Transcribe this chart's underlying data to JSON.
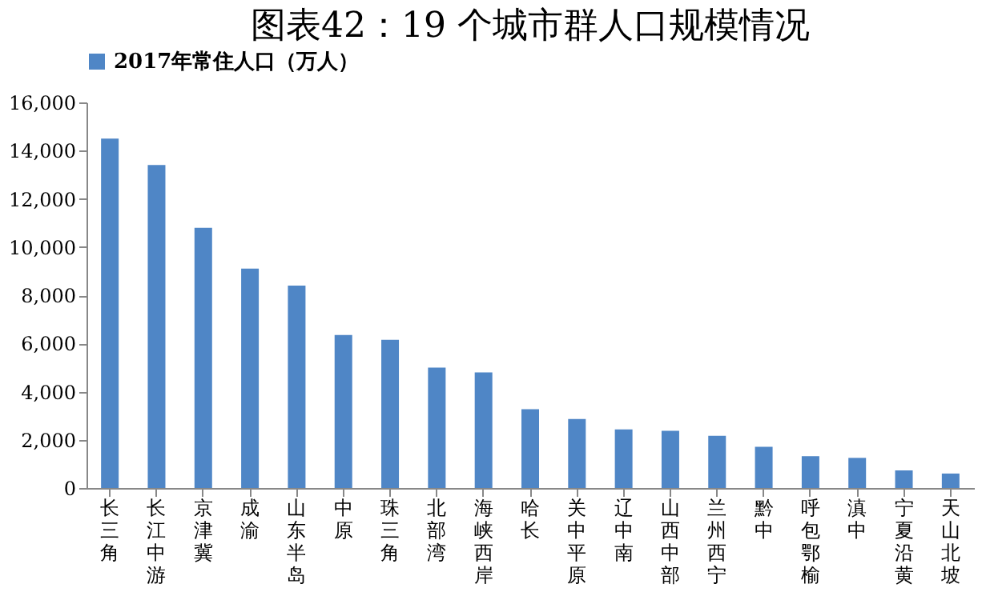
{
  "chart_data": {
    "type": "bar",
    "title": "图表42：19 个城市群人口规模情况",
    "categories": [
      "长三角",
      "长江中游",
      "京津冀",
      "成渝",
      "山东半岛",
      "中原",
      "珠三角",
      "北部湾",
      "海峡西岸",
      "哈长",
      "关中平原",
      "辽中南",
      "山西中部",
      "兰州西宁",
      "黔中",
      "呼包鄂榆",
      "滇中",
      "宁夏沿黄",
      "天山北坡"
    ],
    "series": [
      {
        "name": "2017年常住人口（万人）",
        "color": "#4f86c6",
        "values": [
          14500,
          13400,
          10800,
          9100,
          8400,
          6350,
          6150,
          5000,
          4800,
          3270,
          2860,
          2430,
          2370,
          2170,
          1710,
          1320,
          1250,
          730,
          600
        ]
      }
    ],
    "ylim": [
      0,
      16000
    ],
    "yticks": [
      {
        "value": 0,
        "label": "0"
      },
      {
        "value": 2000,
        "label": "2,000"
      },
      {
        "value": 4000,
        "label": "4,000"
      },
      {
        "value": 6000,
        "label": "6,000"
      },
      {
        "value": 8000,
        "label": "8,000"
      },
      {
        "value": 10000,
        "label": "10,000"
      },
      {
        "value": 12000,
        "label": "12,000"
      },
      {
        "value": 14000,
        "label": "14,000"
      },
      {
        "value": 16000,
        "label": "16,000"
      }
    ],
    "grid": false,
    "legend": "top"
  }
}
